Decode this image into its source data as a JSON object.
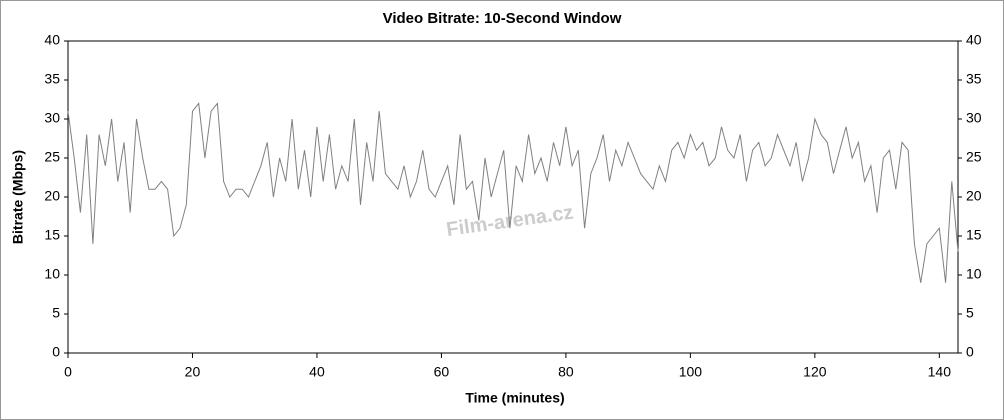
{
  "chart_data": {
    "type": "line",
    "title": "Video Bitrate: 10-Second Window",
    "xlabel": "Time (minutes)",
    "ylabel": "Bitrate (Mbps)",
    "watermark": "Film-arena.cz",
    "x": [
      0,
      1,
      2,
      3,
      4,
      5,
      6,
      7,
      8,
      9,
      10,
      11,
      12,
      13,
      14,
      15,
      16,
      17,
      18,
      19,
      20,
      21,
      22,
      23,
      24,
      25,
      26,
      27,
      28,
      29,
      30,
      31,
      32,
      33,
      34,
      35,
      36,
      37,
      38,
      39,
      40,
      41,
      42,
      43,
      44,
      45,
      46,
      47,
      48,
      49,
      50,
      51,
      52,
      53,
      54,
      55,
      56,
      57,
      58,
      59,
      60,
      61,
      62,
      63,
      64,
      65,
      66,
      67,
      68,
      69,
      70,
      71,
      72,
      73,
      74,
      75,
      76,
      77,
      78,
      79,
      80,
      81,
      82,
      83,
      84,
      85,
      86,
      87,
      88,
      89,
      90,
      91,
      92,
      93,
      94,
      95,
      96,
      97,
      98,
      99,
      100,
      101,
      102,
      103,
      104,
      105,
      106,
      107,
      108,
      109,
      110,
      111,
      112,
      113,
      114,
      115,
      116,
      117,
      118,
      119,
      120,
      121,
      122,
      123,
      124,
      125,
      126,
      127,
      128,
      129,
      130,
      131,
      132,
      133,
      134,
      135,
      136,
      137,
      138,
      139,
      140,
      141,
      142,
      143
    ],
    "series": [
      {
        "name": "Bitrate",
        "color": "#808080",
        "values": [
          31,
          25,
          18,
          28,
          14,
          28,
          24,
          30,
          22,
          27,
          18,
          30,
          25,
          21,
          21,
          22,
          21,
          15,
          16,
          19,
          31,
          32,
          25,
          31,
          32,
          22,
          20,
          21,
          21,
          20,
          22,
          24,
          27,
          20,
          25,
          22,
          30,
          21,
          26,
          20,
          29,
          22,
          28,
          21,
          24,
          22,
          30,
          19,
          27,
          22,
          31,
          23,
          22,
          21,
          24,
          20,
          22,
          26,
          21,
          20,
          22,
          24,
          19,
          28,
          21,
          22,
          17,
          25,
          20,
          23,
          26,
          16,
          24,
          22,
          28,
          23,
          25,
          22,
          27,
          24,
          29,
          24,
          26,
          16,
          23,
          25,
          28,
          22,
          26,
          24,
          27,
          25,
          23,
          22,
          21,
          24,
          22,
          26,
          27,
          25,
          28,
          26,
          27,
          24,
          25,
          29,
          26,
          25,
          28,
          22,
          26,
          27,
          24,
          25,
          28,
          26,
          24,
          27,
          22,
          25,
          30,
          28,
          27,
          23,
          26,
          29,
          25,
          27,
          22,
          24,
          18,
          25,
          26,
          21,
          27,
          26,
          14,
          9,
          14,
          15,
          16,
          9,
          22,
          13
        ]
      }
    ],
    "xlim": [
      0,
      143
    ],
    "xticks": [
      0,
      20,
      40,
      60,
      80,
      100,
      120,
      140
    ],
    "ylim": [
      0,
      40
    ],
    "yticks": [
      0,
      5,
      10,
      15,
      20,
      25,
      30,
      35,
      40
    ],
    "y2lim": [
      0,
      40
    ],
    "y2ticks": [
      0,
      5,
      10,
      15,
      20,
      25,
      30,
      35,
      40
    ],
    "grid": false
  }
}
